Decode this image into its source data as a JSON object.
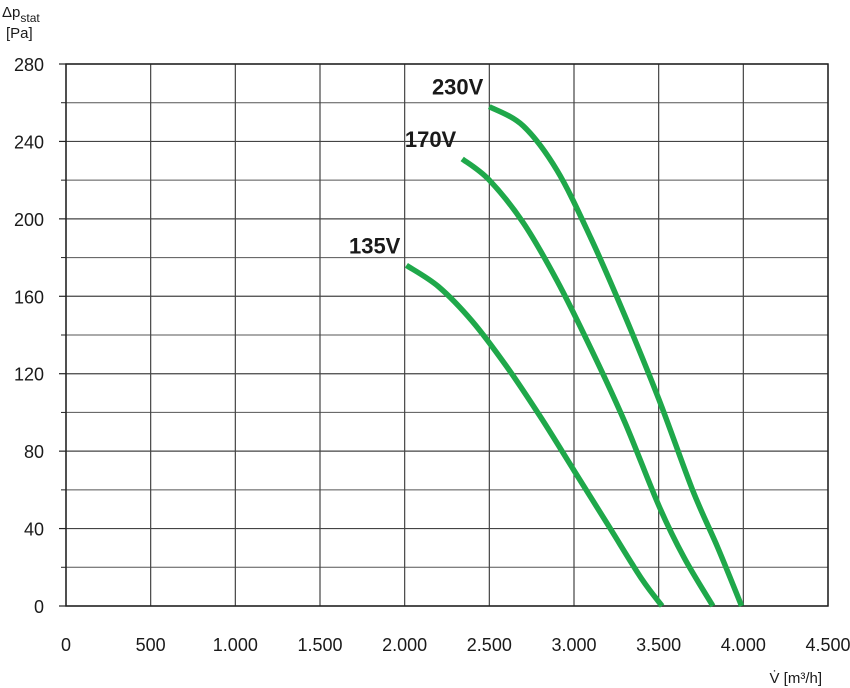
{
  "chart_data": {
    "type": "line",
    "xlabel": "V̇ [m³/h]",
    "ylabel_main": "Δp",
    "ylabel_sub": "stat",
    "ylabel_unit": "[Pa]",
    "xlim": [
      0,
      4500
    ],
    "ylim": [
      0,
      280
    ],
    "grid": true,
    "x_ticks": [
      0,
      500,
      1000,
      1500,
      2000,
      2500,
      3000,
      3500,
      4000,
      4500
    ],
    "x_tick_labels": [
      "0",
      "500",
      "1.000",
      "1.500",
      "2.000",
      "2.500",
      "3.000",
      "3.500",
      "4.000",
      "4.500"
    ],
    "y_ticks": [
      0,
      40,
      80,
      120,
      160,
      200,
      240,
      280
    ],
    "y_tick_labels": [
      "0",
      "40",
      "80",
      "120",
      "160",
      "200",
      "240",
      "280"
    ],
    "series_color": "#1fa84a",
    "series": [
      {
        "name": "230V",
        "x": [
          2500,
          2700,
          2900,
          3100,
          3300,
          3500,
          3700,
          3850,
          3990
        ],
        "y": [
          258,
          248,
          225,
          190,
          150,
          107,
          60,
          30,
          0
        ]
      },
      {
        "name": "170V",
        "x": [
          2340,
          2500,
          2700,
          2900,
          3100,
          3300,
          3500,
          3650,
          3820
        ],
        "y": [
          231,
          220,
          198,
          168,
          133,
          95,
          52,
          25,
          0
        ]
      },
      {
        "name": "135V",
        "x": [
          2010,
          2200,
          2400,
          2600,
          2800,
          3000,
          3200,
          3400,
          3520
        ],
        "y": [
          176,
          165,
          147,
          124,
          98,
          70,
          42,
          14,
          0
        ]
      }
    ]
  }
}
